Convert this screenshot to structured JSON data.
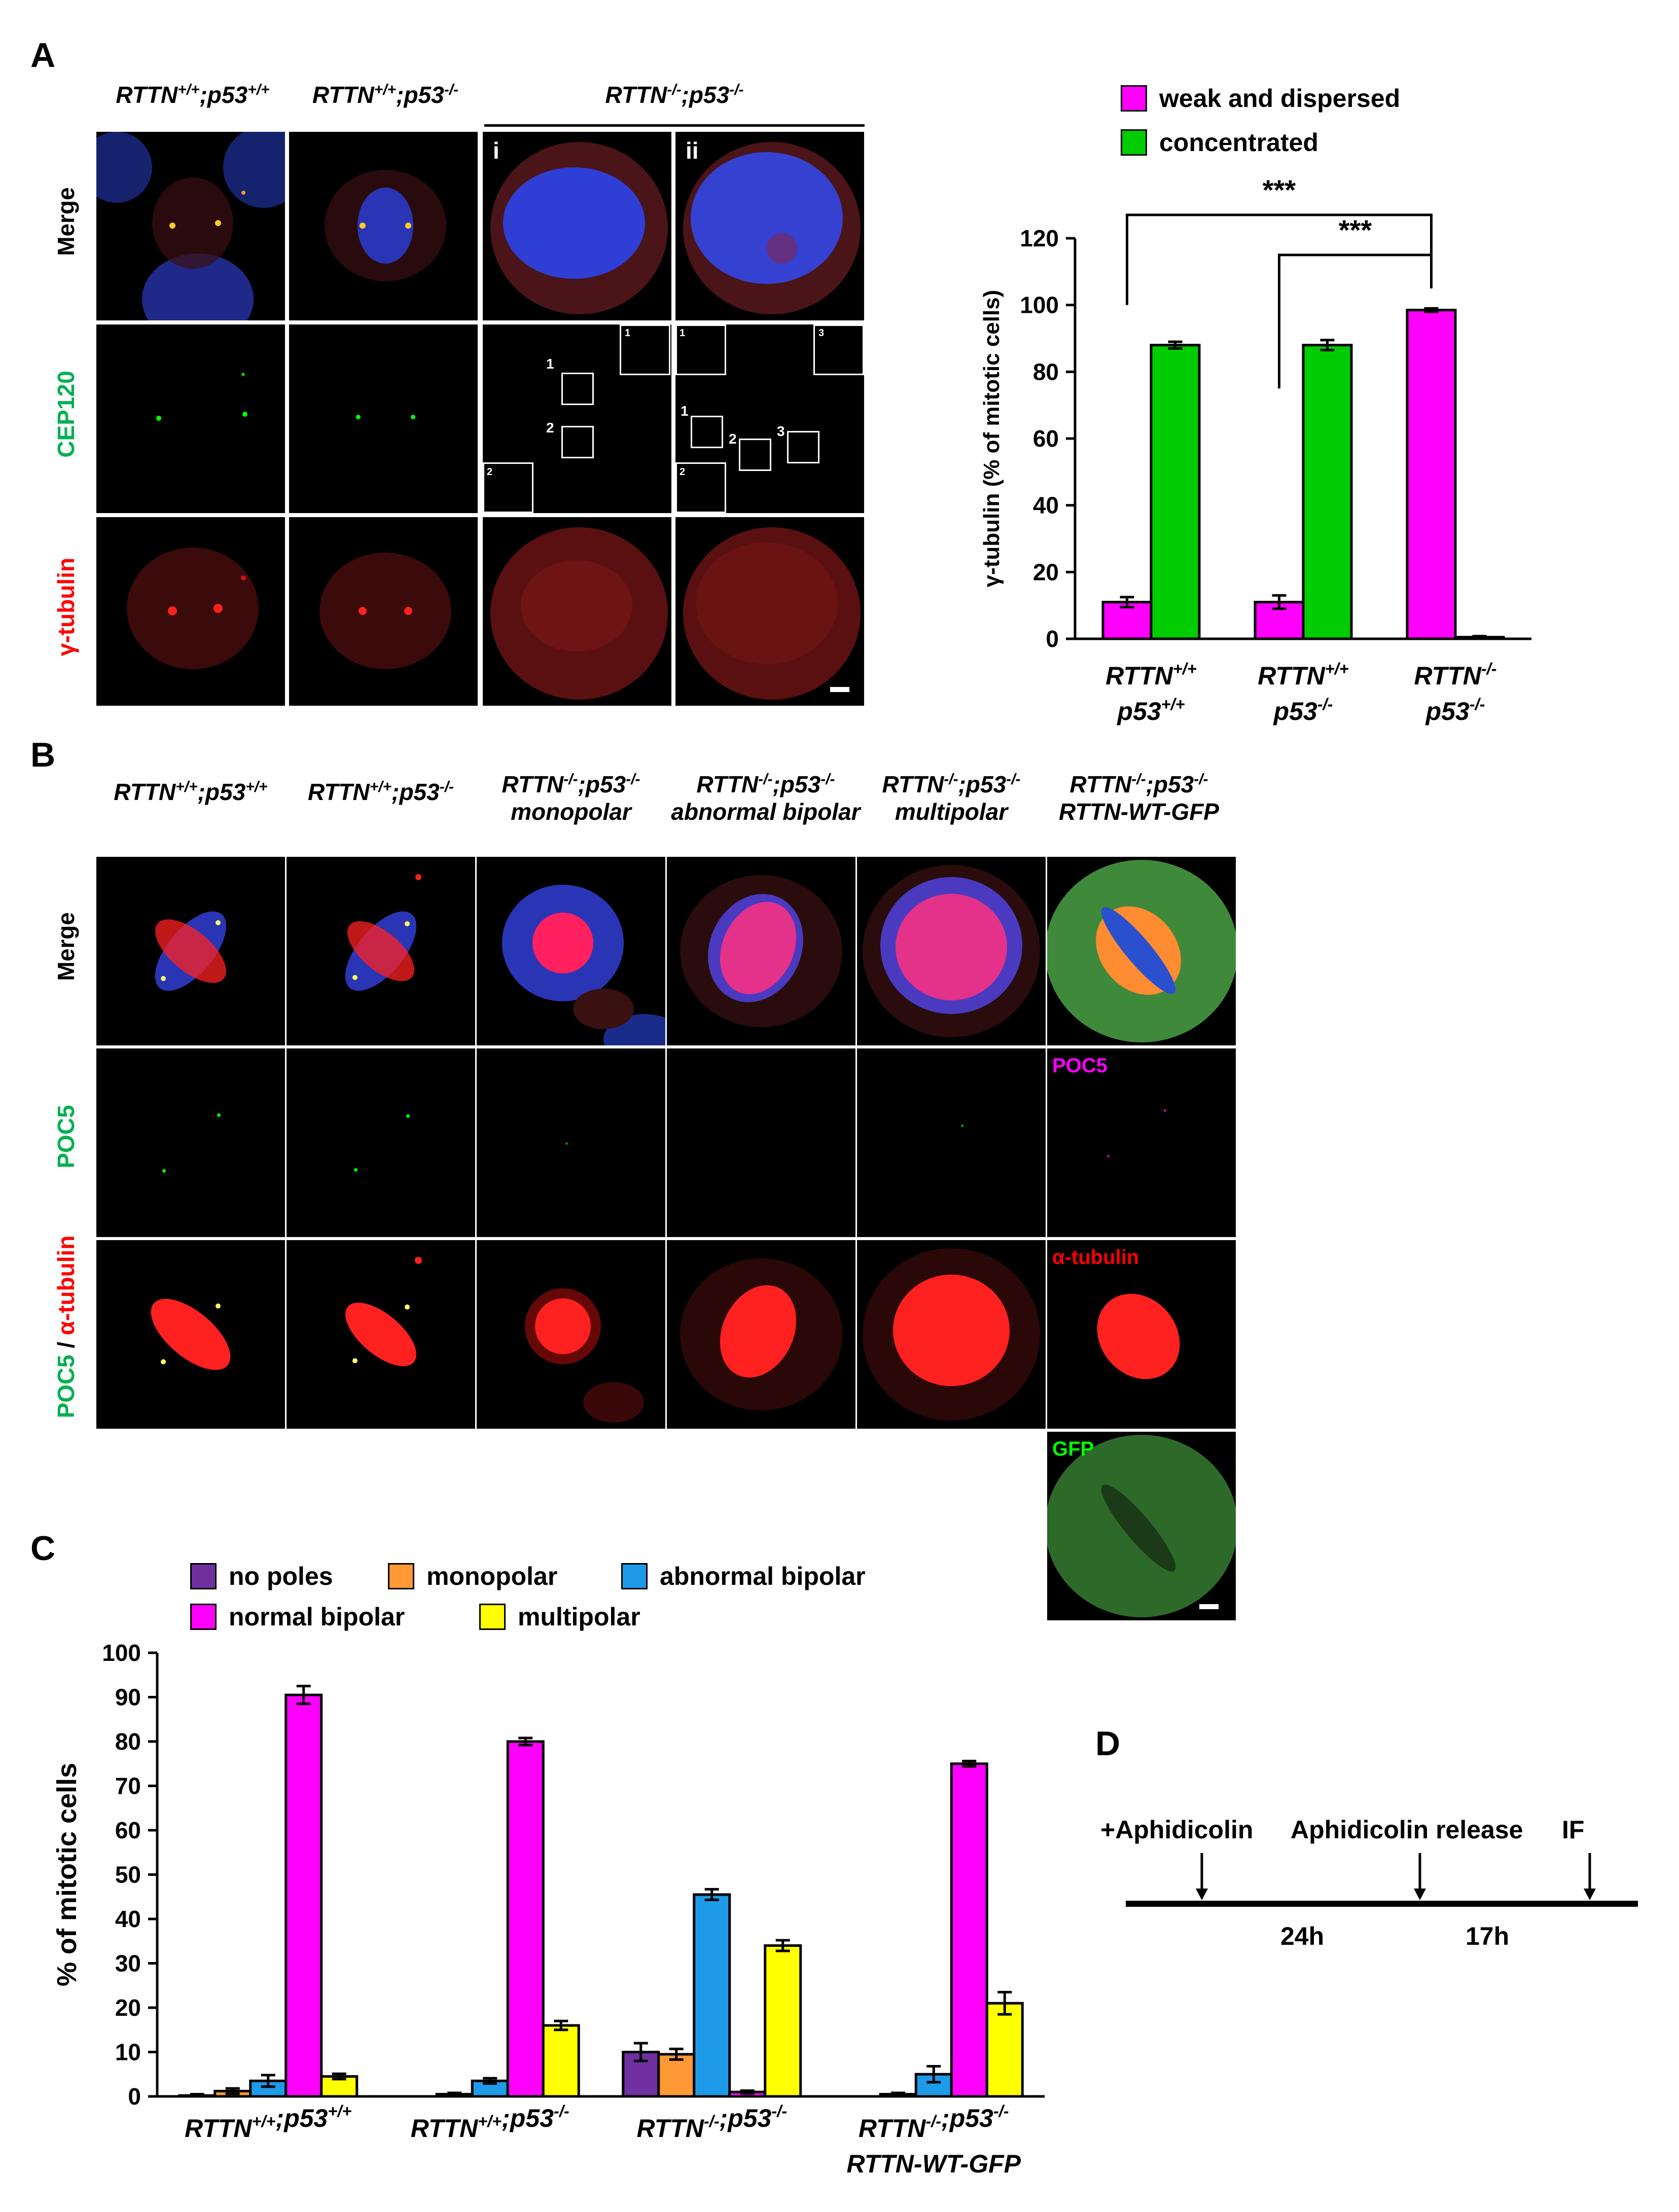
{
  "panels": {
    "a": "A",
    "b": "B",
    "c": "C",
    "d": "D"
  },
  "panel_a": {
    "col_labels": [
      {
        "base": "RTTN",
        "sup1": "+/+",
        "mid": ";p53",
        "sup2": "+/+"
      },
      {
        "base": "RTTN",
        "sup1": "+/+",
        "mid": ";p53",
        "sup2": "-/-"
      },
      {
        "base": "RTTN",
        "sup1": "-/-",
        "mid": ";p53",
        "sup2": "-/-"
      }
    ],
    "sub_labels": [
      "i",
      "ii"
    ],
    "row_labels": [
      "Merge",
      "CEP120",
      "γ-tubulin"
    ],
    "box_numbers": [
      "1",
      "2",
      "1",
      "2",
      "3"
    ],
    "inset_numbers": [
      "1",
      "2",
      "1",
      "2",
      "3"
    ]
  },
  "panel_b": {
    "col_labels": [
      {
        "l1": "RTTN+/+;p53+/+",
        "l2": ""
      },
      {
        "l1": "RTTN+/+;p53-/-",
        "l2": ""
      },
      {
        "l1": "RTTN-/-;p53-/-",
        "l2": "monopolar"
      },
      {
        "l1": "RTTN-/-;p53-/-",
        "l2": "abnormal bipolar"
      },
      {
        "l1": "RTTN-/-;p53-/-",
        "l2": "multipolar"
      },
      {
        "l1": "RTTN-/-;p53-/-",
        "l2": "RTTN-WT-GFP"
      }
    ],
    "row_labels": [
      "Merge",
      "POC5",
      "POC5 / α-tubulin"
    ],
    "row3_part1": "POC5",
    "row3_sep": " / ",
    "row3_part2": "α-tubulin",
    "inner_labels": {
      "poc5": "POC5",
      "tubulin": "α-tubulin",
      "gfp": "GFP"
    }
  },
  "colors": {
    "magenta": "#ff00ff",
    "green": "#00cc00",
    "purple": "#7030a0",
    "orange": "#ff9933",
    "blue": "#1e9be8",
    "yellow": "#ffff00",
    "label_green": "#00b050",
    "label_red": "#ff0000",
    "label_magenta": "#ff00ff"
  },
  "chart_data": [
    {
      "type": "bar",
      "panel": "A",
      "categories": [
        [
          "RTTN+/+",
          "p53+/+"
        ],
        [
          "RTTN+/+",
          "p53-/-"
        ],
        [
          "RTTN-/-",
          "p53-/-"
        ]
      ],
      "series": [
        {
          "name": "weak and dispersed",
          "values": [
            11,
            11,
            98.5
          ],
          "errors": [
            1.5,
            2.0,
            0.5
          ]
        },
        {
          "name": "concentrated",
          "values": [
            88,
            88,
            0.5
          ],
          "errors": [
            1.0,
            1.5,
            0.3
          ]
        }
      ],
      "ylabel": "γ-tubulin (% of mitotic cells)",
      "ylim": [
        0,
        120
      ],
      "yticks": [
        0,
        20,
        40,
        60,
        80,
        100,
        120
      ],
      "significance": [
        "***",
        "***"
      ],
      "legend_position": "top"
    },
    {
      "type": "bar",
      "panel": "C",
      "categories": [
        "RTTN+/+;p53+/+",
        "RTTN+/+;p53-/-",
        "RTTN-/-;p53-/-",
        "RTTN-/-;p53-/- RTTN-WT-GFP"
      ],
      "series": [
        {
          "name": "no poles",
          "values": [
            0.2,
            0,
            10,
            0
          ],
          "errors": [
            0.3,
            0,
            2.0,
            0
          ]
        },
        {
          "name": "monopolar",
          "values": [
            1.2,
            0.5,
            9.5,
            0.5
          ],
          "errors": [
            0.6,
            0.3,
            1.2,
            0.3
          ]
        },
        {
          "name": "abnormal bipolar",
          "values": [
            3.5,
            3.5,
            45.5,
            5
          ],
          "errors": [
            1.3,
            0.6,
            1.2,
            1.8
          ]
        },
        {
          "name": "normal bipolar",
          "values": [
            90.5,
            80,
            1,
            75
          ],
          "errors": [
            2.0,
            0.8,
            0.3,
            0.6
          ]
        },
        {
          "name": "multipolar",
          "values": [
            4.5,
            16,
            34,
            21
          ],
          "errors": [
            0.6,
            1.0,
            1.2,
            2.5
          ]
        }
      ],
      "ylabel": "% of mitotic cells",
      "ylim": [
        0,
        100
      ],
      "yticks": [
        0,
        10,
        20,
        30,
        40,
        50,
        60,
        70,
        80,
        90,
        100
      ],
      "legend_position": "top"
    }
  ],
  "panel_d": {
    "labels": [
      "+Aphidicolin",
      "Aphidicolin release",
      "IF"
    ],
    "durations": [
      "24h",
      "17h"
    ]
  }
}
